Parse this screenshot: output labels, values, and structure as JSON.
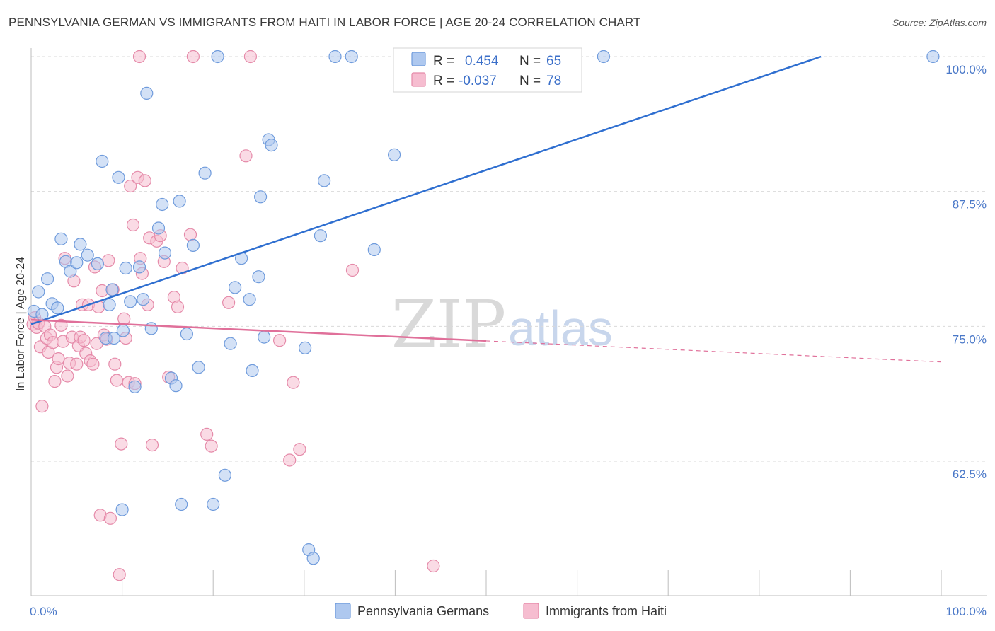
{
  "title": "PENNSYLVANIA GERMAN VS IMMIGRANTS FROM HAITI IN LABOR FORCE | AGE 20-24 CORRELATION CHART",
  "source": "Source: ZipAtlas.com",
  "colors": {
    "blue_fill": "#aec8ef",
    "blue_stroke": "#6f9bdc",
    "blue_line": "#2f6fd0",
    "pink_fill": "#f6bdd0",
    "pink_stroke": "#e58aa9",
    "pink_line": "#e0709a",
    "grid": "#d9d9d9",
    "tick_label": "#4a78c8"
  },
  "legend": {
    "r_label": "R =",
    "n_label": "N =",
    "blue": {
      "r": "0.454",
      "n": "65"
    },
    "pink": {
      "r": "-0.037",
      "n": "78"
    }
  },
  "watermark": {
    "zip": "ZIP",
    "atlas": "atlas"
  },
  "chart_data": {
    "type": "scatter",
    "xlabel": "",
    "ylabel": "In Labor Force | Age 20-24",
    "xlim": [
      0,
      100
    ],
    "ylim": [
      51,
      101
    ],
    "x_tick_labels": [
      "0.0%",
      "100.0%"
    ],
    "y_ticks": [
      62.5,
      75.0,
      87.5,
      100.0
    ],
    "y_tick_labels": [
      "62.5%",
      "75.0%",
      "87.5%",
      "100.0%"
    ],
    "grid": "horizontal dashed",
    "series": [
      {
        "name": "Pennsylvania Germans",
        "color": "#aec8ef",
        "trend": {
          "x": [
            0,
            86.8
          ],
          "y": [
            75.2,
            100.0
          ],
          "style": "solid"
        },
        "points": [
          [
            0.3,
            76.4
          ],
          [
            0.8,
            78.2
          ],
          [
            1.2,
            76.1
          ],
          [
            1.8,
            79.4
          ],
          [
            2.3,
            77.1
          ],
          [
            2.9,
            76.7
          ],
          [
            3.3,
            83.1
          ],
          [
            3.8,
            81.0
          ],
          [
            4.3,
            80.1
          ],
          [
            5.0,
            80.9
          ],
          [
            5.4,
            82.6
          ],
          [
            6.2,
            81.6
          ],
          [
            7.3,
            80.8
          ],
          [
            7.8,
            90.3
          ],
          [
            8.2,
            73.9
          ],
          [
            8.6,
            77.0
          ],
          [
            8.9,
            78.4
          ],
          [
            9.1,
            73.9
          ],
          [
            9.6,
            88.8
          ],
          [
            10.1,
            74.6
          ],
          [
            10.4,
            80.4
          ],
          [
            10.9,
            77.3
          ],
          [
            11.4,
            69.4
          ],
          [
            11.9,
            80.5
          ],
          [
            12.3,
            77.5
          ],
          [
            12.7,
            96.6
          ],
          [
            13.2,
            74.8
          ],
          [
            14.0,
            84.1
          ],
          [
            14.4,
            86.3
          ],
          [
            14.7,
            81.8
          ],
          [
            15.4,
            70.2
          ],
          [
            15.9,
            69.5
          ],
          [
            16.3,
            86.6
          ],
          [
            17.1,
            74.3
          ],
          [
            17.8,
            82.5
          ],
          [
            18.4,
            71.2
          ],
          [
            19.1,
            89.2
          ],
          [
            20.0,
            58.5
          ],
          [
            20.5,
            100.0
          ],
          [
            21.3,
            61.2
          ],
          [
            21.9,
            73.4
          ],
          [
            22.4,
            78.6
          ],
          [
            23.1,
            81.3
          ],
          [
            24.0,
            77.5
          ],
          [
            24.3,
            70.9
          ],
          [
            25.2,
            87.0
          ],
          [
            25.6,
            74.0
          ],
          [
            26.1,
            92.3
          ],
          [
            26.4,
            91.8
          ],
          [
            30.1,
            73.0
          ],
          [
            30.5,
            54.3
          ],
          [
            31.0,
            53.5
          ],
          [
            31.8,
            83.4
          ],
          [
            32.2,
            88.5
          ],
          [
            33.4,
            100.0
          ],
          [
            35.2,
            100.0
          ],
          [
            37.7,
            82.1
          ],
          [
            39.9,
            90.9
          ],
          [
            43.6,
            100.0
          ],
          [
            56.9,
            100.0
          ],
          [
            62.9,
            100.0
          ],
          [
            99.1,
            100.0
          ],
          [
            10.0,
            58.0
          ],
          [
            16.5,
            58.5
          ],
          [
            25.0,
            79.6
          ]
        ]
      },
      {
        "name": "Immigrants from Haiti",
        "color": "#f6bdd0",
        "trend": {
          "x": [
            0,
            100
          ],
          "y": [
            75.6,
            71.7
          ],
          "solid_until": 50
        },
        "points": [
          [
            0.2,
            75.2
          ],
          [
            0.4,
            75.8
          ],
          [
            0.6,
            74.9
          ],
          [
            0.8,
            75.3
          ],
          [
            1.0,
            73.1
          ],
          [
            1.2,
            67.6
          ],
          [
            1.5,
            75.0
          ],
          [
            1.7,
            73.9
          ],
          [
            1.9,
            72.6
          ],
          [
            2.1,
            74.2
          ],
          [
            2.4,
            73.5
          ],
          [
            2.6,
            69.9
          ],
          [
            2.8,
            71.2
          ],
          [
            3.0,
            72.0
          ],
          [
            3.3,
            75.1
          ],
          [
            3.5,
            73.6
          ],
          [
            3.7,
            81.3
          ],
          [
            4.0,
            70.4
          ],
          [
            4.2,
            71.6
          ],
          [
            4.5,
            74.0
          ],
          [
            4.7,
            79.2
          ],
          [
            5.0,
            71.5
          ],
          [
            5.2,
            73.2
          ],
          [
            5.4,
            74.0
          ],
          [
            5.6,
            77.0
          ],
          [
            5.8,
            73.7
          ],
          [
            6.0,
            72.5
          ],
          [
            6.3,
            77.0
          ],
          [
            6.5,
            71.8
          ],
          [
            6.8,
            71.5
          ],
          [
            7.0,
            80.5
          ],
          [
            7.2,
            73.4
          ],
          [
            7.4,
            76.8
          ],
          [
            7.6,
            57.5
          ],
          [
            7.8,
            78.3
          ],
          [
            8.0,
            74.2
          ],
          [
            8.3,
            73.8
          ],
          [
            8.5,
            81.1
          ],
          [
            8.7,
            57.2
          ],
          [
            9.0,
            78.4
          ],
          [
            9.2,
            71.5
          ],
          [
            9.4,
            70.0
          ],
          [
            9.7,
            52.0
          ],
          [
            9.9,
            64.1
          ],
          [
            10.2,
            75.7
          ],
          [
            10.4,
            73.9
          ],
          [
            10.7,
            69.8
          ],
          [
            10.9,
            88.0
          ],
          [
            11.2,
            84.4
          ],
          [
            11.4,
            69.7
          ],
          [
            11.7,
            88.8
          ],
          [
            12.0,
            81.3
          ],
          [
            12.2,
            79.9
          ],
          [
            12.5,
            88.5
          ],
          [
            12.8,
            77.0
          ],
          [
            13.0,
            83.2
          ],
          [
            13.3,
            64.0
          ],
          [
            13.8,
            82.9
          ],
          [
            14.2,
            83.4
          ],
          [
            14.6,
            81.0
          ],
          [
            15.1,
            70.3
          ],
          [
            15.7,
            77.7
          ],
          [
            16.1,
            76.8
          ],
          [
            16.6,
            80.4
          ],
          [
            17.5,
            83.5
          ],
          [
            19.3,
            65.0
          ],
          [
            19.8,
            63.9
          ],
          [
            21.7,
            77.2
          ],
          [
            23.6,
            90.8
          ],
          [
            24.1,
            100.0
          ],
          [
            27.3,
            73.7
          ],
          [
            28.4,
            62.6
          ],
          [
            28.8,
            69.8
          ],
          [
            29.5,
            63.6
          ],
          [
            35.3,
            80.2
          ],
          [
            44.2,
            52.8
          ],
          [
            11.9,
            100.0
          ],
          [
            17.8,
            100.0
          ]
        ]
      }
    ]
  }
}
